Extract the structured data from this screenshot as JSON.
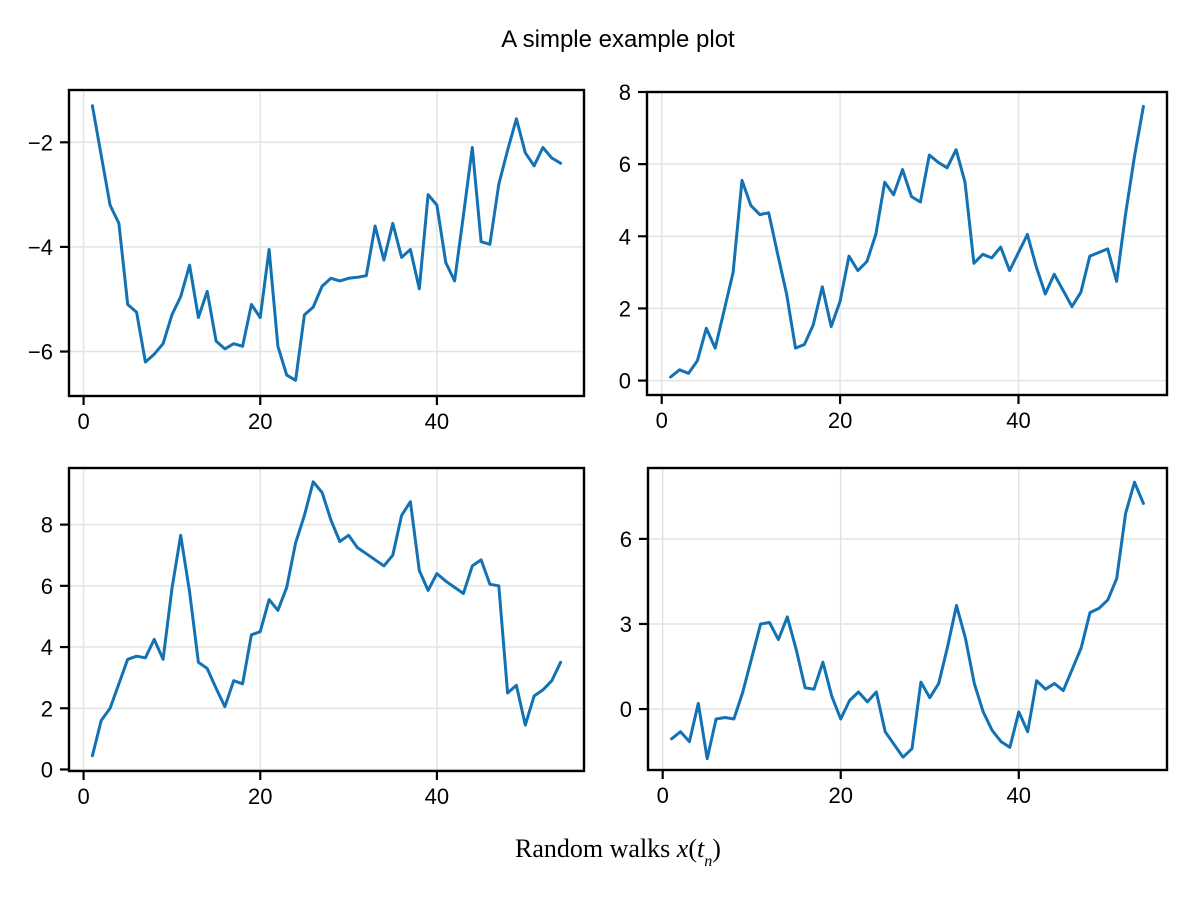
{
  "figure": {
    "title": "A simple example plot",
    "caption": {
      "prefix": "Random walks ",
      "var_x": "x",
      "open_paren": "(",
      "var_t": "t",
      "subscript": "n",
      "close_paren": ")"
    }
  },
  "style": {
    "line_color": "#1372b4",
    "grid_color": "#e3e3e3",
    "spine_color": "#000000",
    "tick_label_color": "#000000",
    "background_color": "#ffffff"
  },
  "chart_data": [
    {
      "id": "top-left",
      "type": "line",
      "x_start": 1,
      "x_step": 1,
      "xlim": [
        -1.65,
        56.65
      ],
      "ylim": [
        -6.85,
        -1.0
      ],
      "x_ticks": [
        0,
        20,
        40
      ],
      "y_ticks": [
        -6,
        -4,
        -2
      ],
      "grid": true,
      "legend": false,
      "values": [
        -1.3,
        -2.25,
        -3.2,
        -3.55,
        -5.1,
        -5.25,
        -6.2,
        -6.05,
        -5.85,
        -5.3,
        -4.95,
        -4.35,
        -5.35,
        -4.85,
        -5.8,
        -5.95,
        -5.85,
        -5.9,
        -5.1,
        -5.35,
        -4.05,
        -5.9,
        -6.45,
        -6.55,
        -5.3,
        -5.15,
        -4.75,
        -4.6,
        -4.65,
        -4.6,
        -4.58,
        -4.55,
        -3.6,
        -4.25,
        -3.55,
        -4.2,
        -4.05,
        -4.8,
        -3.0,
        -3.2,
        -4.3,
        -4.65,
        -3.4,
        -2.1,
        -3.9,
        -3.95,
        -2.8,
        -2.15,
        -1.55,
        -2.2,
        -2.45,
        -2.1,
        -2.3,
        -2.4
      ]
    },
    {
      "id": "top-right",
      "type": "line",
      "x_start": 1,
      "x_step": 1,
      "xlim": [
        -1.65,
        56.65
      ],
      "ylim": [
        -0.4,
        8.0
      ],
      "x_ticks": [
        0,
        20,
        40
      ],
      "y_ticks": [
        0,
        2,
        4,
        6,
        8
      ],
      "grid": true,
      "legend": false,
      "values": [
        0.1,
        0.3,
        0.2,
        0.55,
        1.45,
        0.9,
        1.95,
        3.0,
        5.55,
        4.85,
        4.6,
        4.65,
        3.5,
        2.4,
        0.9,
        1.0,
        1.55,
        2.6,
        1.5,
        2.2,
        3.45,
        3.05,
        3.3,
        4.05,
        5.5,
        5.15,
        5.85,
        5.1,
        4.95,
        6.25,
        6.05,
        5.9,
        6.4,
        5.5,
        3.25,
        3.5,
        3.4,
        3.7,
        3.05,
        3.55,
        4.05,
        3.15,
        2.4,
        2.95,
        2.5,
        2.05,
        2.45,
        3.45,
        3.55,
        3.65,
        2.75,
        4.6,
        6.2,
        7.6
      ]
    },
    {
      "id": "bottom-left",
      "type": "line",
      "x_start": 1,
      "x_step": 1,
      "xlim": [
        -1.65,
        56.65
      ],
      "ylim": [
        -0.05,
        9.85
      ],
      "x_ticks": [
        0,
        20,
        40
      ],
      "y_ticks": [
        0,
        2,
        4,
        6,
        8
      ],
      "grid": true,
      "legend": false,
      "values": [
        0.45,
        1.6,
        2.0,
        2.8,
        3.6,
        3.7,
        3.65,
        4.25,
        3.6,
        5.9,
        7.65,
        5.8,
        3.5,
        3.3,
        2.65,
        2.05,
        2.9,
        2.8,
        4.4,
        4.5,
        5.55,
        5.2,
        5.95,
        7.4,
        8.3,
        9.4,
        9.05,
        8.15,
        7.45,
        7.65,
        7.25,
        7.05,
        6.85,
        6.65,
        7.0,
        8.3,
        8.75,
        6.5,
        5.85,
        6.4,
        6.15,
        5.95,
        5.75,
        6.65,
        6.85,
        6.05,
        6.0,
        2.5,
        2.75,
        1.45,
        2.4,
        2.6,
        2.9,
        3.5
      ]
    },
    {
      "id": "bottom-right",
      "type": "line",
      "x_start": 1,
      "x_step": 1,
      "xlim": [
        -1.65,
        56.65
      ],
      "ylim": [
        -2.15,
        8.5
      ],
      "x_ticks": [
        0,
        20,
        40
      ],
      "y_ticks": [
        0,
        3,
        6
      ],
      "grid": true,
      "legend": false,
      "values": [
        -1.05,
        -0.8,
        -1.15,
        0.2,
        -1.75,
        -0.35,
        -0.3,
        -0.35,
        0.6,
        1.8,
        3.0,
        3.05,
        2.45,
        3.25,
        2.1,
        0.75,
        0.7,
        1.65,
        0.45,
        -0.35,
        0.3,
        0.6,
        0.25,
        0.6,
        -0.8,
        -1.25,
        -1.7,
        -1.4,
        0.95,
        0.4,
        0.9,
        2.2,
        3.65,
        2.5,
        0.9,
        -0.1,
        -0.75,
        -1.15,
        -1.35,
        -0.1,
        -0.8,
        1.0,
        0.7,
        0.9,
        0.65,
        1.4,
        2.15,
        3.4,
        3.55,
        3.85,
        4.6,
        6.9,
        8.0,
        7.25
      ]
    }
  ]
}
